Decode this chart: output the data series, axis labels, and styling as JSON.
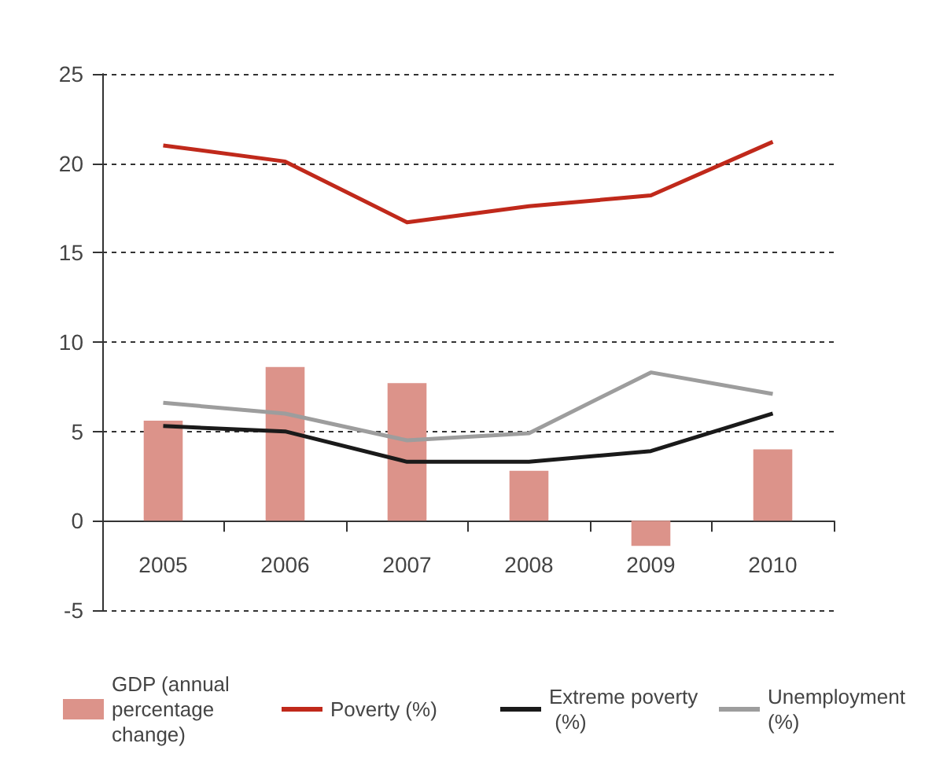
{
  "chart_data": {
    "type": "bar",
    "categories": [
      "2005",
      "2006",
      "2007",
      "2008",
      "2009",
      "2010"
    ],
    "series": [
      {
        "name": "GDP (annual percentage change)",
        "color": "#dc938a",
        "values": [
          5.6,
          8.6,
          7.7,
          2.8,
          -1.4,
          4.0
        ]
      },
      {
        "name": "Poverty (%)",
        "type": "line",
        "color": "#c0291b",
        "values": [
          21.0,
          20.1,
          16.7,
          17.6,
          18.2,
          21.2
        ]
      },
      {
        "name": "Extreme poverty (%)",
        "type": "line",
        "color": "#1a1a1a",
        "values": [
          5.3,
          5.0,
          3.3,
          3.3,
          3.9,
          6.0
        ]
      },
      {
        "name": "Unemployment (%)",
        "type": "line",
        "color": "#9d9d9d",
        "values": [
          6.6,
          6.0,
          4.5,
          4.9,
          8.3,
          7.1
        ]
      }
    ],
    "ylim": [
      -5,
      25
    ],
    "yticks": [
      -5,
      0,
      5,
      10,
      15,
      20,
      25
    ],
    "grid": "y",
    "legend": "bottom",
    "marker": "none",
    "line_style": "solid"
  }
}
